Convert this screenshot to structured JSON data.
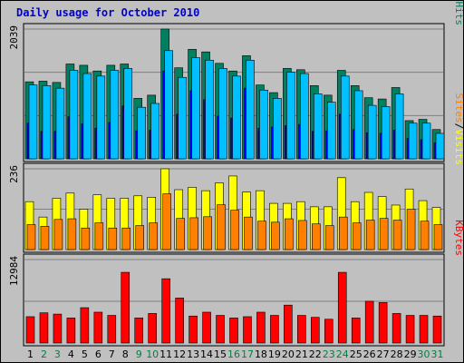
{
  "chart_data": {
    "type": "bar",
    "title": "Daily usage for October 2010",
    "background": "#c0c0c0",
    "grid": true,
    "categories": [
      "1",
      "2",
      "3",
      "4",
      "5",
      "6",
      "7",
      "8",
      "9",
      "10",
      "11",
      "12",
      "13",
      "14",
      "15",
      "16",
      "17",
      "18",
      "19",
      "20",
      "21",
      "22",
      "23",
      "24",
      "25",
      "26",
      "27",
      "28",
      "29",
      "30",
      "31"
    ],
    "weekend_days": [
      "2",
      "3",
      "9",
      "10",
      "16",
      "17",
      "23",
      "24",
      "30",
      "31"
    ],
    "weekday_label_color": "#000000",
    "weekend_label_color": "#007f3f",
    "panels": [
      {
        "name": "hits-files-pages",
        "ymax_label": "2039",
        "ylim": [
          0,
          2039
        ],
        "legend": [
          {
            "text": "Pages",
            "color": "#00c0ff"
          },
          {
            "text": "/",
            "color": "#000000"
          },
          {
            "text": "Files",
            "color": "#0000ff"
          },
          {
            "text": "/",
            "color": "#000000"
          },
          {
            "text": "Hits",
            "color": "#008060"
          }
        ],
        "series": [
          {
            "name": "Hits",
            "color": "#008060",
            "values": [
              1210,
              1220,
              1200,
              1490,
              1470,
              1380,
              1470,
              1490,
              950,
              1000,
              2039,
              1430,
              1720,
              1680,
              1500,
              1380,
              1620,
              1160,
              1040,
              1420,
              1400,
              1150,
              1000,
              1390,
              1150,
              960,
              940,
              1120,
              600,
              620,
              460
            ]
          },
          {
            "name": "Files",
            "color": "#0000ff",
            "values": [
              560,
              430,
              430,
              660,
              550,
              480,
              570,
              830,
              440,
              450,
              1380,
              700,
              1070,
              930,
              670,
              640,
              1110,
              480,
              500,
              520,
              540,
              430,
              440,
              700,
              460,
              410,
              400,
              450,
              320,
              300,
              250
            ]
          },
          {
            "name": "Pages",
            "color": "#00c0ff",
            "values": [
              1160,
              1150,
              1110,
              1390,
              1340,
              1300,
              1390,
              1420,
              810,
              870,
              1700,
              1280,
              1590,
              1550,
              1420,
              1300,
              1550,
              1080,
              950,
              1360,
              1340,
              1020,
              890,
              1300,
              1070,
              840,
              820,
              1020,
              560,
              560,
              400
            ]
          }
        ]
      },
      {
        "name": "visits-sites",
        "ymax_label": "236",
        "ylim": [
          0,
          236
        ],
        "legend": [
          {
            "text": "Sites",
            "color": "#ff8000"
          },
          {
            "text": "/",
            "color": "#000000"
          },
          {
            "text": "Visits",
            "color": "#ffff00"
          }
        ],
        "series": [
          {
            "name": "Visits",
            "color": "#ffff00",
            "values": [
              140,
              95,
              150,
              165,
              118,
              160,
              150,
              150,
              157,
              153,
              236,
              175,
              182,
              172,
              195,
              215,
              168,
              172,
              135,
              135,
              140,
              125,
              125,
              210,
              140,
              167,
              155,
              130,
              177,
              143,
              123
            ]
          },
          {
            "name": "Sites",
            "color": "#ff8000",
            "values": [
              73,
              68,
              88,
              90,
              63,
              78,
              63,
              63,
              70,
              78,
              163,
              91,
              93,
              96,
              131,
              115,
              95,
              83,
              80,
              90,
              85,
              75,
              70,
              95,
              78,
              86,
              91,
              86,
              118,
              83,
              73
            ]
          }
        ]
      },
      {
        "name": "kbytes",
        "ymax_label": "12984",
        "ylim": [
          0,
          12984
        ],
        "legend": [
          {
            "text": "KBytes",
            "color": "#ff0000"
          }
        ],
        "series": [
          {
            "name": "KBytes",
            "color": "#ff0000",
            "values": [
              4100,
              4700,
              4500,
              3900,
              5500,
              4800,
              4300,
              11000,
              3900,
              4600,
              10000,
              7000,
              4200,
              4800,
              4300,
              3900,
              4100,
              4800,
              4300,
              5900,
              4300,
              4000,
              3700,
              11000,
              3900,
              6500,
              6300,
              4600,
              4300,
              4300,
              4200
            ]
          }
        ]
      }
    ]
  }
}
